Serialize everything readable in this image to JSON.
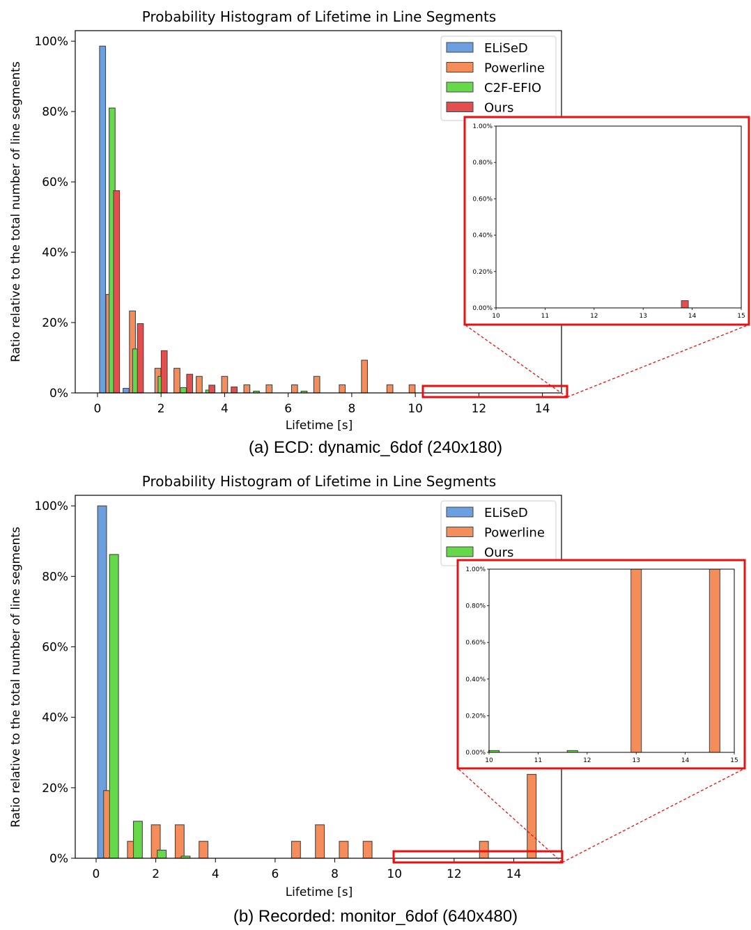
{
  "colors": {
    "ELiSeD": "#6a9fe0",
    "Powerline": "#f58d5a",
    "C2F-EFIO": "#66d94a",
    "Ours_a": "#e34f4f",
    "Ours_b": "#66d94a",
    "highlight": "#e81010",
    "edge": "#444444"
  },
  "chart_data": [
    {
      "type": "bar",
      "title": "Probability Histogram of Lifetime in Line Segments",
      "caption": "(a) ECD: dynamic_6dof (240x180)",
      "xlabel": "Lifetime [s]",
      "ylabel": "Ratio relative to the total number of line segments",
      "xlim": [
        -0.7,
        14.6
      ],
      "ylim": [
        0,
        103
      ],
      "xticks": [
        "0",
        "2",
        "4",
        "6",
        "8",
        "10",
        "12",
        "14"
      ],
      "yticks": [
        "0%",
        "20%",
        "40%",
        "60%",
        "80%",
        "100%"
      ],
      "legend": "top-right",
      "grid": false,
      "series": [
        {
          "name": "ELiSeD",
          "x": [
            0.16,
            0.9
          ],
          "values": [
            98.6,
            1.3
          ]
        },
        {
          "name": "Powerline",
          "x": [
            0.36,
            1.1,
            1.9,
            2.5,
            3.2,
            4.0,
            4.7,
            5.4,
            6.2,
            6.9,
            7.7,
            8.4,
            9.2,
            9.9
          ],
          "values": [
            28,
            23.3,
            7,
            7,
            4.7,
            4.7,
            2.3,
            2.3,
            2.3,
            4.7,
            2.3,
            9.3,
            2.3,
            2.3
          ]
        },
        {
          "name": "C2F-EFIO",
          "x": [
            0.46,
            1.2,
            2.0,
            2.7,
            3.5,
            5.0,
            6.5
          ],
          "values": [
            81,
            12.5,
            4.7,
            1.5,
            0.8,
            0.5,
            0.5
          ]
        },
        {
          "name": "Ours",
          "x": [
            0.6,
            1.35,
            2.1,
            2.9,
            3.6,
            4.3
          ],
          "values": [
            57.5,
            19.7,
            12,
            5.3,
            2.2,
            1.7
          ]
        }
      ],
      "inset": {
        "xlim": [
          10,
          15
        ],
        "ylim": [
          0,
          1
        ],
        "xticks": [
          "10",
          "11",
          "12",
          "13",
          "14",
          "15"
        ],
        "yticks": [
          "0.00%",
          "0.20%",
          "0.40%",
          "0.60%",
          "0.80%",
          "1.00%"
        ],
        "bars": [
          {
            "series": "Ours",
            "x": 13.85,
            "value": 0.04
          }
        ]
      }
    },
    {
      "type": "bar",
      "title": "Probability Histogram of Lifetime in Line Segments",
      "caption": "(b) Recorded: monitor_6dof (640x480)",
      "xlabel": "Lifetime [s]",
      "ylabel": "Ratio relative to the total number of line segments",
      "xlim": [
        -0.7,
        15.6
      ],
      "ylim": [
        0,
        103
      ],
      "xticks": [
        "0",
        "2",
        "4",
        "6",
        "8",
        "10",
        "12",
        "14"
      ],
      "yticks": [
        "0%",
        "20%",
        "40%",
        "60%",
        "80%",
        "100%"
      ],
      "legend": "top-right",
      "grid": false,
      "series": [
        {
          "name": "ELiSeD",
          "x": [
            0.2
          ],
          "values": [
            100
          ]
        },
        {
          "name": "Powerline",
          "x": [
            0.4,
            1.2,
            2.0,
            2.8,
            3.6,
            6.7,
            7.5,
            8.3,
            9.1,
            13.0,
            14.6
          ],
          "values": [
            19.2,
            4.8,
            9.5,
            9.5,
            4.8,
            4.8,
            9.5,
            4.8,
            4.8,
            4.8,
            23.8
          ]
        },
        {
          "name": "Ours",
          "x": [
            0.6,
            1.4,
            2.2,
            3.0
          ],
          "values": [
            86.2,
            10.5,
            2.3,
            0.6
          ]
        }
      ],
      "inset": {
        "xlim": [
          10,
          15
        ],
        "ylim": [
          0,
          1
        ],
        "xticks": [
          "10",
          "11",
          "12",
          "13",
          "14",
          "15"
        ],
        "yticks": [
          "0.00%",
          "0.20%",
          "0.40%",
          "0.60%",
          "0.80%",
          "1.00%"
        ],
        "bars": [
          {
            "series": "Ours",
            "x": 10.1,
            "value": 0.01
          },
          {
            "series": "Ours",
            "x": 11.7,
            "value": 0.01
          },
          {
            "series": "Powerline",
            "x": 13.0,
            "value": 1.0
          },
          {
            "series": "Powerline",
            "x": 14.6,
            "value": 1.0
          }
        ]
      }
    }
  ]
}
